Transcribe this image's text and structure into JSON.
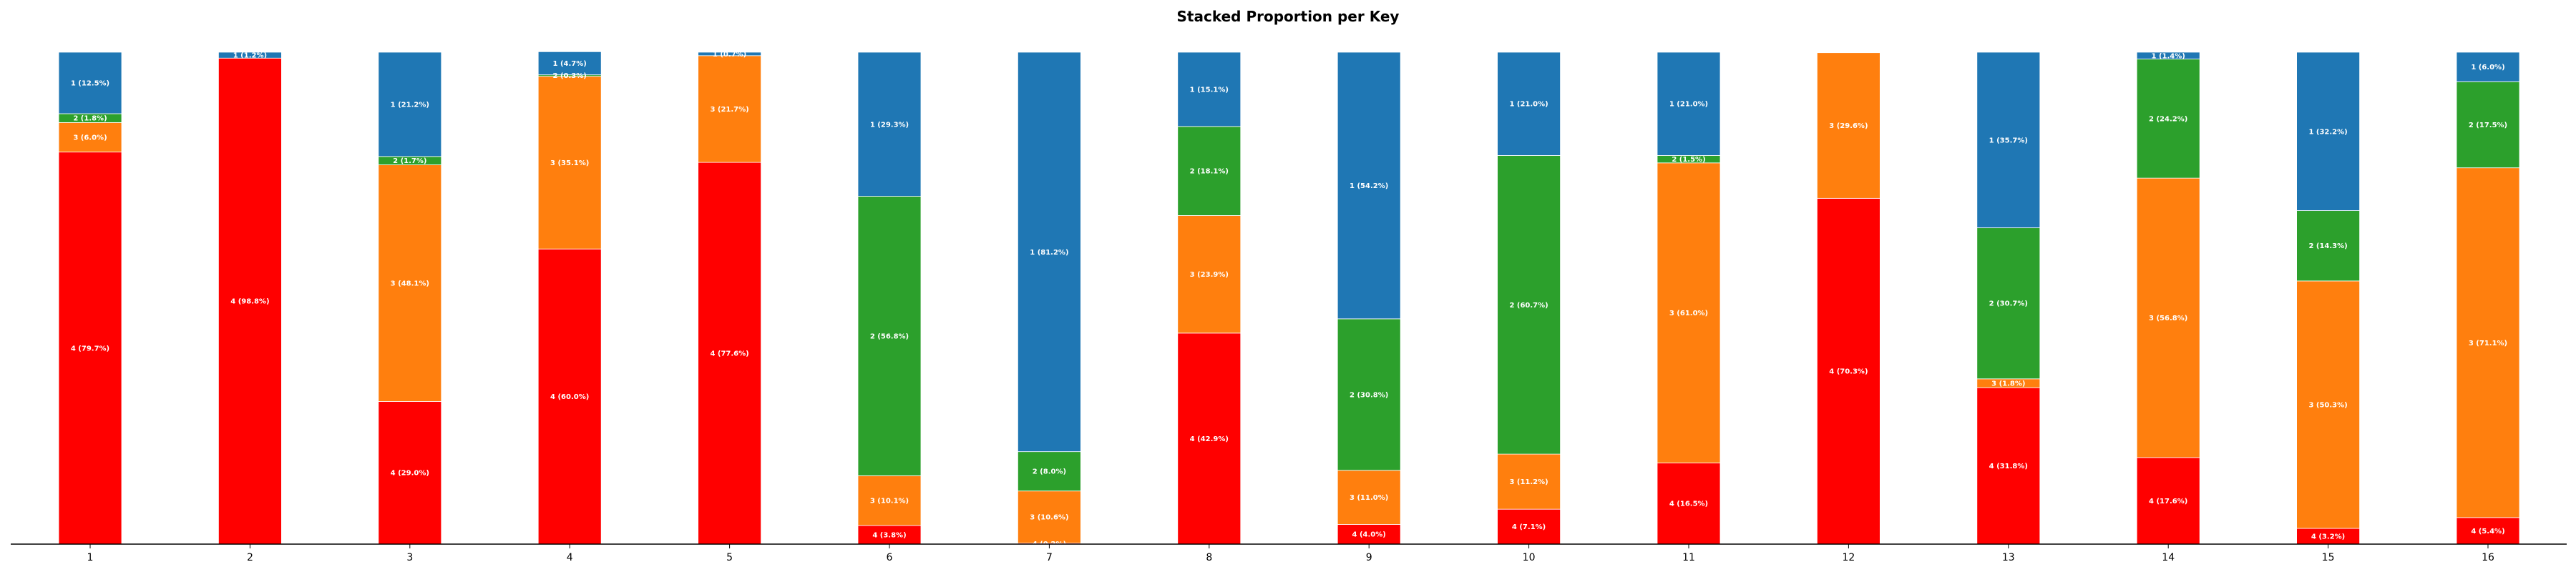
{
  "chart_data": {
    "type": "bar",
    "stacked": true,
    "title": "Stacked Proportion per Key",
    "xlabel": "",
    "ylabel": "",
    "ylim": [
      0,
      100
    ],
    "grid": false,
    "categories": [
      "1",
      "2",
      "3",
      "4",
      "5",
      "6",
      "7",
      "8",
      "9",
      "10",
      "11",
      "12",
      "13",
      "14",
      "15",
      "16"
    ],
    "colors": {
      "4": "#ff0000",
      "3": "#ff7f0e",
      "2": "#2ca02c",
      "1": "#1f77b4"
    },
    "series": [
      {
        "name": "4",
        "values": [
          79.7,
          98.8,
          29.0,
          60.0,
          77.6,
          3.8,
          0.2,
          42.9,
          4.0,
          7.1,
          16.5,
          70.3,
          31.8,
          17.6,
          3.2,
          5.4
        ],
        "labels": [
          "4 (79.7%)",
          "4 (98.8%)",
          "4 (29.0%)",
          "4 (60.0%)",
          "4 (77.6%)",
          "4 (3.8%)",
          "4 (0.2%)",
          "4 (42.9%)",
          "4 (4.0%)",
          "4 (7.1%)",
          "4 (16.5%)",
          "4 (70.3%)",
          "4 (31.8%)",
          "4 (17.6%)",
          "4 (3.2%)",
          "4 (5.4%)"
        ]
      },
      {
        "name": "3",
        "values": [
          6.0,
          0.0,
          48.1,
          35.1,
          21.7,
          10.1,
          10.6,
          23.9,
          11.0,
          11.2,
          61.0,
          29.6,
          1.8,
          56.8,
          50.3,
          71.1
        ],
        "labels": [
          "3 (6.0%)",
          "",
          "3 (48.1%)",
          "3 (35.1%)",
          "3 (21.7%)",
          "3 (10.1%)",
          "3 (10.6%)",
          "3 (23.9%)",
          "3 (11.0%)",
          "3 (11.2%)",
          "3 (61.0%)",
          "3 (29.6%)",
          "3 (1.8%)",
          "3 (56.8%)",
          "3 (50.3%)",
          "3 (71.1%)"
        ]
      },
      {
        "name": "2",
        "values": [
          1.8,
          0.0,
          1.7,
          0.3,
          0.0,
          56.8,
          8.0,
          18.1,
          30.8,
          60.7,
          1.5,
          0.0,
          30.7,
          24.2,
          14.3,
          17.5
        ],
        "labels": [
          "2 (1.8%)",
          "",
          "2 (1.7%)",
          "2 (0.3%)",
          "",
          "2 (56.8%)",
          "2 (8.0%)",
          "2 (18.1%)",
          "2 (30.8%)",
          "2 (60.7%)",
          "2 (1.5%)",
          "",
          "2 (30.7%)",
          "2 (24.2%)",
          "2 (14.3%)",
          "2 (17.5%)"
        ]
      },
      {
        "name": "1",
        "values": [
          12.5,
          1.2,
          21.2,
          4.7,
          0.7,
          29.3,
          81.2,
          15.1,
          54.2,
          21.0,
          21.0,
          0.0,
          35.7,
          1.4,
          32.2,
          6.0
        ],
        "labels": [
          "1 (12.5%)",
          "1 (1.2%)",
          "1 (21.2%)",
          "1 (4.7%)",
          "1 (0.7%)",
          "1 (29.3%)",
          "1 (81.2%)",
          "1 (15.1%)",
          "1 (54.2%)",
          "1 (21.0%)",
          "1 (21.0%)",
          "",
          "1 (35.7%)",
          "1 (1.4%)",
          "1 (32.2%)",
          "1 (6.0%)"
        ]
      }
    ]
  }
}
